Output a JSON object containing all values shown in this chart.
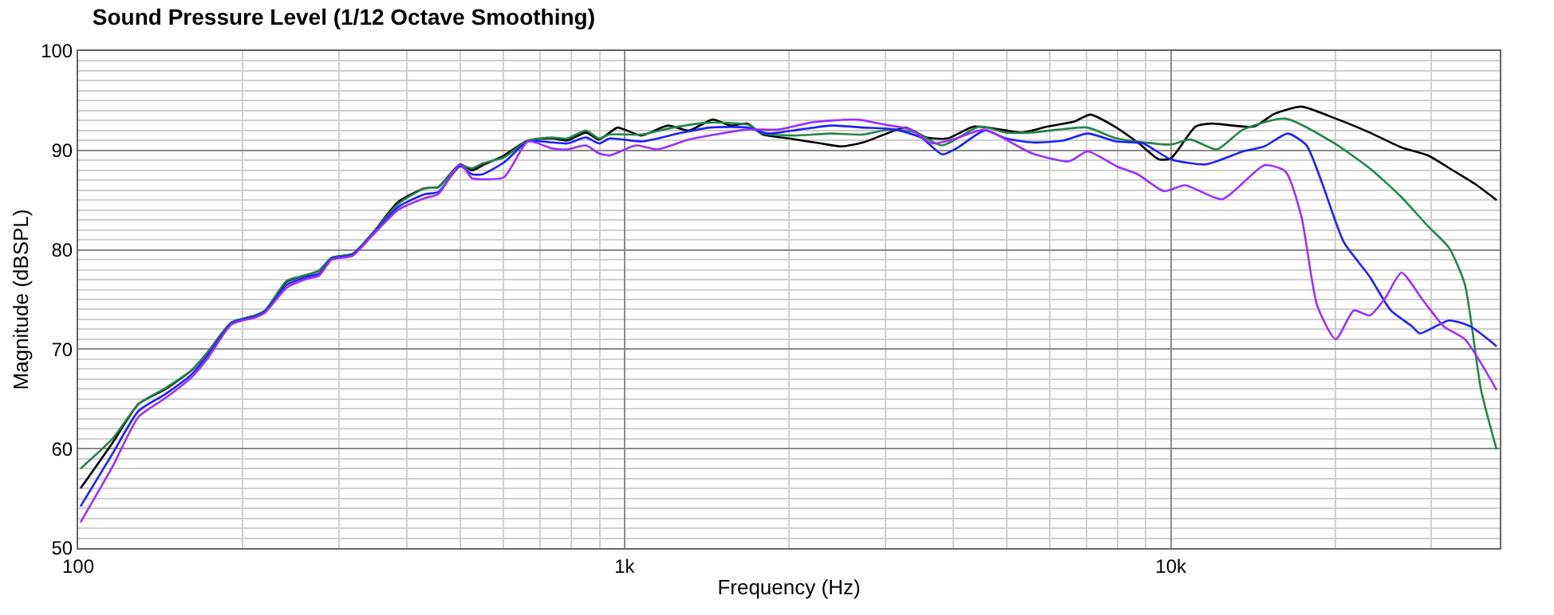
{
  "chart_data": {
    "type": "line",
    "title": "Sound Pressure Level (1/12 Octave Smoothing)",
    "xlabel": "Frequency (Hz)",
    "ylabel": "Magnitude (dBSPL)",
    "log": "x",
    "grid": true,
    "marker": "none",
    "line_style": "solid",
    "xlim": [
      100,
      40000
    ],
    "xticks": [
      {
        "value": 100,
        "label": "100"
      },
      {
        "value": 1000,
        "label": "1k"
      },
      {
        "value": 10000,
        "label": "10k"
      }
    ],
    "ylim": [
      50,
      100
    ],
    "yticks": [
      50,
      60,
      70,
      80,
      90,
      100
    ],
    "series": [
      {
        "color": "#000000",
        "x": [
          101,
          115.6,
          129,
          144.5,
          161.5,
          172.7,
          190.9,
          211,
          220,
          241,
          263,
          276,
          291,
          318,
          345,
          385,
          431,
          456,
          500,
          526,
          550,
          602,
          666,
          737,
          786,
          850,
          898,
          940,
          971,
          1074,
          1200,
          1312,
          1450,
          1567,
          1676,
          1791,
          2003,
          2289,
          2500,
          2733,
          2989,
          3265,
          3570,
          3903,
          4363,
          4877,
          5329,
          5956,
          6657,
          7120,
          7782,
          8697,
          9508,
          10000,
          11100,
          11870,
          14190,
          15500,
          17330,
          19820,
          23120,
          26430,
          29530,
          33040,
          36110,
          39480
        ],
        "values": [
          56.0,
          60.6,
          64.5,
          66.0,
          67.9,
          69.7,
          72.7,
          73.4,
          73.9,
          76.8,
          77.5,
          77.9,
          79.2,
          79.6,
          81.6,
          84.8,
          86.2,
          86.3,
          88.6,
          88.0,
          88.5,
          89.5,
          91.0,
          91.2,
          91.0,
          91.8,
          91.1,
          91.8,
          92.3,
          91.5,
          92.5,
          92.0,
          93.1,
          92.5,
          92.7,
          91.6,
          91.2,
          90.7,
          90.4,
          90.8,
          91.6,
          92.3,
          91.3,
          91.2,
          92.4,
          92.1,
          91.8,
          92.4,
          92.9,
          93.6,
          92.6,
          90.8,
          89.1,
          89.2,
          92.4,
          92.7,
          92.4,
          93.7,
          94.4,
          93.3,
          91.8,
          90.3,
          89.5,
          87.9,
          86.6,
          85.0
        ]
      },
      {
        "color": "#23864a",
        "x": [
          101,
          115.6,
          129,
          144.5,
          161.5,
          172.7,
          190.9,
          211,
          220,
          241,
          263,
          276,
          291,
          318,
          345,
          385,
          431,
          456,
          500,
          526,
          550,
          602,
          666,
          737,
          786,
          850,
          898,
          940,
          1074,
          1227,
          1433,
          1676,
          1791,
          2046,
          2393,
          2733,
          3056,
          3412,
          3815,
          4463,
          4987,
          5572,
          6229,
          7039,
          7958,
          10000,
          10860,
          12140,
          13560,
          16200,
          19820,
          23120,
          26430,
          29530,
          32310,
          34540,
          36940,
          39480
        ],
        "values": [
          58.0,
          61.0,
          64.5,
          66.1,
          67.9,
          69.7,
          72.7,
          73.4,
          73.9,
          76.9,
          77.5,
          77.9,
          79.2,
          79.6,
          81.6,
          84.6,
          86.2,
          86.3,
          88.5,
          88.2,
          88.7,
          89.3,
          91.0,
          91.3,
          91.2,
          92.0,
          91.2,
          91.6,
          91.6,
          92.3,
          92.8,
          92.6,
          91.7,
          91.5,
          91.7,
          91.6,
          92.1,
          91.8,
          90.5,
          92.4,
          91.8,
          91.8,
          92.1,
          92.3,
          91.2,
          90.6,
          91.1,
          90.1,
          92.1,
          93.2,
          90.8,
          88.2,
          85.3,
          82.4,
          80.2,
          76.5,
          66.0,
          59.9
        ]
      },
      {
        "color": "#1f1fff",
        "x": [
          101,
          115.6,
          129,
          144.5,
          161.5,
          172.7,
          190.9,
          211,
          220,
          241,
          263,
          276,
          291,
          318,
          345,
          385,
          431,
          456,
          500,
          526,
          550,
          602,
          666,
          737,
          786,
          850,
          898,
          940,
          1074,
          1255,
          1433,
          1676,
          1832,
          2092,
          2393,
          2733,
          3125,
          3490,
          3815,
          4078,
          4561,
          4987,
          5572,
          6366,
          7039,
          7958,
          8893,
          10000,
          11610,
          13560,
          14830,
          16380,
          17720,
          18950,
          20720,
          23120,
          25280,
          27640,
          28560,
          32310,
          35320,
          39480
        ],
        "values": [
          54.2,
          59.5,
          63.8,
          65.5,
          67.5,
          69.4,
          72.6,
          73.3,
          73.8,
          76.5,
          77.3,
          77.6,
          79.1,
          79.5,
          81.5,
          84.3,
          85.6,
          85.8,
          88.4,
          87.6,
          87.6,
          88.8,
          90.9,
          90.8,
          90.7,
          91.3,
          90.7,
          91.2,
          90.9,
          91.7,
          92.3,
          92.3,
          91.7,
          92.1,
          92.5,
          92.3,
          92.1,
          91.3,
          89.6,
          90.3,
          92.0,
          91.2,
          90.8,
          91.0,
          91.7,
          90.9,
          90.7,
          89.1,
          88.6,
          89.9,
          90.4,
          91.7,
          90.5,
          86.6,
          80.8,
          77.3,
          73.9,
          72.3,
          71.6,
          72.9,
          72.3,
          70.3
        ]
      },
      {
        "color": "#9b30ff",
        "x": [
          101,
          115.6,
          129,
          144.5,
          161.5,
          172.7,
          190.9,
          211,
          220,
          241,
          263,
          276,
          291,
          318,
          345,
          385,
          431,
          456,
          500,
          526,
          550,
          602,
          666,
          737,
          786,
          850,
          898,
          940,
          1050,
          1148,
          1312,
          1466,
          1676,
          1915,
          2190,
          2393,
          2673,
          2989,
          3337,
          3650,
          3990,
          4561,
          5100,
          5572,
          6510,
          7039,
          7958,
          8697,
          9720,
          10620,
          12410,
          14830,
          16200,
          17330,
          18530,
          20040,
          21630,
          23120,
          24720,
          26430,
          28880,
          31600,
          34540,
          39480
        ],
        "values": [
          52.6,
          58.2,
          63.2,
          65.1,
          67.2,
          69.1,
          72.5,
          73.2,
          73.7,
          76.2,
          77.1,
          77.4,
          79.0,
          79.4,
          81.4,
          84.0,
          85.2,
          85.6,
          88.6,
          87.2,
          87.1,
          87.3,
          90.9,
          90.2,
          90.1,
          90.5,
          89.7,
          89.5,
          90.5,
          90.1,
          91.1,
          91.6,
          92.1,
          92.1,
          92.8,
          93.0,
          93.1,
          92.6,
          92.1,
          90.7,
          91.1,
          92.1,
          90.8,
          89.7,
          88.9,
          89.9,
          88.4,
          87.6,
          85.9,
          86.5,
          85.1,
          88.5,
          87.9,
          83.4,
          74.4,
          71.0,
          73.9,
          73.4,
          75.2,
          77.7,
          75.0,
          72.3,
          71.0,
          65.9
        ]
      }
    ]
  }
}
